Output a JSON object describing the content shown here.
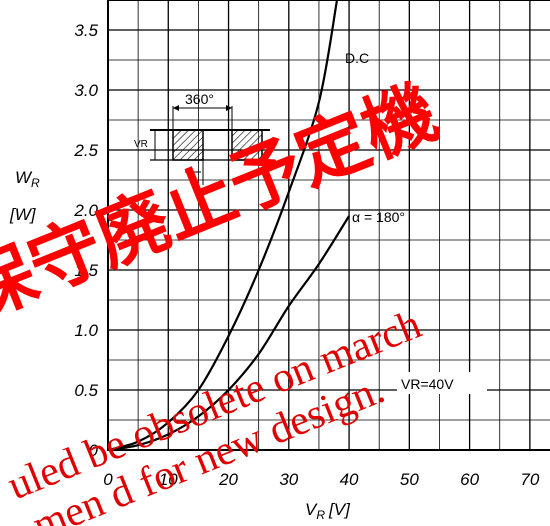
{
  "chart_data": {
    "type": "line",
    "xlabel": "V",
    "xlabel_sub": "R",
    "xlabel_unit": "[V]",
    "ylabel": "W",
    "ylabel_sub": "R",
    "ylabel_unit": "[W]",
    "xlim": [
      0,
      75
    ],
    "ylim": [
      0,
      3.75
    ],
    "x_ticks": [
      "0",
      "10",
      "20",
      "30",
      "40",
      "50",
      "60",
      "70"
    ],
    "y_ticks": [
      "0",
      "0.5",
      "1.0",
      "1.5",
      "2.0",
      "2.5",
      "3.0",
      "3.5"
    ],
    "grid": true,
    "series": [
      {
        "name": "D.C",
        "points": [
          [
            0,
            0
          ],
          [
            5,
            0.07
          ],
          [
            10,
            0.23
          ],
          [
            15,
            0.5
          ],
          [
            20,
            0.95
          ],
          [
            25,
            1.5
          ],
          [
            30,
            2.15
          ],
          [
            35,
            2.9
          ],
          [
            38,
            3.75
          ]
        ]
      },
      {
        "name": "α = 180°",
        "points": [
          [
            0,
            0
          ],
          [
            5,
            0.04
          ],
          [
            10,
            0.13
          ],
          [
            15,
            0.28
          ],
          [
            20,
            0.5
          ],
          [
            25,
            0.8
          ],
          [
            30,
            1.2
          ],
          [
            35,
            1.55
          ],
          [
            40,
            1.95
          ]
        ]
      }
    ],
    "annotations": {
      "condition": "VR=40V",
      "inset_angle": "360°",
      "inset_vr": "VR"
    }
  },
  "watermark": {
    "jp": "保守廃止予定機",
    "line1": "uled be obsolete on march",
    "line2": "men d for new design."
  }
}
